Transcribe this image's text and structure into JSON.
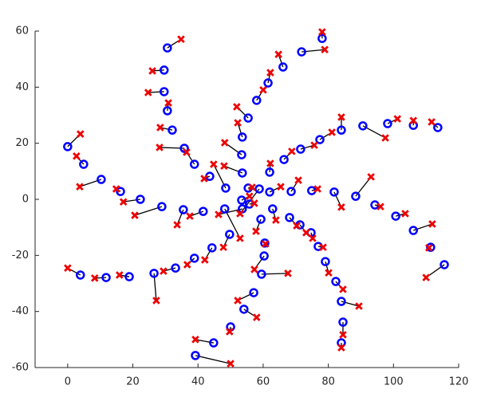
{
  "chart_data": {
    "type": "scatter",
    "xlim": [
      -10,
      120
    ],
    "xticks": [
      0,
      20,
      40,
      60,
      80,
      100,
      120
    ],
    "ylim": [
      -60,
      60
    ],
    "yticks": [
      -60,
      -40,
      -20,
      0,
      20,
      40,
      60
    ],
    "link_color": "#000000",
    "series": [
      {
        "marker": "circle",
        "color": "#0000ff",
        "x": [
          0,
          4.9,
          10.3,
          16.2,
          22.3,
          28.9,
          35.5,
          41.6,
          3.9,
          11.8,
          18.9,
          26.5,
          33.1,
          38.9,
          44.3,
          49.7,
          44.8,
          39.2,
          50.0,
          54.1,
          57.1,
          60.3,
          59.5,
          60.5,
          59.3,
          62.9,
          68.1,
          71.3,
          74.7,
          76.9,
          79.1,
          82.3,
          84.0,
          84.5,
          84.0,
          90.6,
          98.2,
          106.1,
          113.6,
          88.4,
          94.3,
          100.7,
          106.1,
          111.4,
          115.6,
          81.8,
          74.9,
          62.0,
          68.6,
          66.4,
          71.5,
          77.4,
          84.0,
          62.0,
          78.1,
          71.8,
          66.1,
          61.5,
          58.0,
          30.6,
          29.6,
          29.6,
          30.6,
          32.1,
          35.8,
          38.9,
          43.6,
          48.5,
          55.4,
          53.6,
          53.4,
          53.6,
          55.4,
          48.2,
          53.6,
          58.8,
          55.8,
          53.4
        ],
        "values": [
          18.8,
          12.5,
          7.1,
          2.8,
          0,
          -2.6,
          -3.7,
          -4.3,
          -27.0,
          -27.9,
          -27.6,
          -26.4,
          -24.5,
          -21.0,
          -17.3,
          -12.5,
          -51.2,
          -55.7,
          -45.5,
          -39.2,
          -33.3,
          -20.2,
          -26.7,
          -15.6,
          -7.1,
          -3.4,
          -6.5,
          -9.1,
          -11.9,
          -16.8,
          -22.2,
          -29.3,
          -36.4,
          -43.8,
          -51.2,
          26.2,
          27.0,
          26.4,
          25.6,
          1.1,
          -2.0,
          -6.0,
          -11.1,
          -17.1,
          -23.3,
          2.6,
          3.1,
          2.6,
          2.8,
          14.2,
          17.9,
          21.3,
          24.7,
          9.7,
          57.4,
          52.6,
          47.2,
          41.5,
          35.3,
          54.0,
          46.1,
          38.4,
          31.6,
          24.7,
          18.2,
          12.5,
          8.2,
          4.0,
          29.0,
          22.2,
          15.9,
          9.4,
          4.0,
          -3.4,
          -3.4,
          3.7,
          -1.7,
          -0.3
        ]
      },
      {
        "marker": "cross",
        "color": "#ee0000",
        "x": [
          3.9,
          2.7,
          3.7,
          14.9,
          17.1,
          20.6,
          33.6,
          37.5,
          0,
          8.3,
          15.9,
          27.2,
          29.4,
          36.7,
          42.1,
          47.8,
          39.2,
          50.0,
          49.7,
          58.0,
          52.2,
          57.3,
          67.6,
          60.7,
          57.8,
          63.9,
          70.3,
          73.2,
          75.2,
          78.4,
          80.1,
          84.5,
          89.4,
          84.5,
          84.0,
          97.5,
          101.2,
          106.1,
          111.7,
          93.1,
          96.0,
          103.6,
          111.9,
          110.9,
          110.0,
          84.0,
          76.7,
          65.4,
          70.8,
          68.8,
          75.7,
          81.1,
          84.0,
          62.2,
          78.1,
          78.9,
          64.7,
          62.2,
          60.0,
          34.8,
          26.0,
          24.7,
          30.9,
          28.4,
          28.2,
          36.5,
          41.9,
          44.8,
          51.9,
          52.2,
          48.2,
          48.0,
          56.6,
          52.9,
          46.3,
          52.9,
          57.3,
          55.8
        ],
        "values": [
          23.3,
          15.4,
          4.5,
          3.7,
          -0.9,
          -5.7,
          -9.1,
          -6.0,
          -24.5,
          -28.1,
          -27.0,
          -36.1,
          -25.6,
          -23.3,
          -21.6,
          -17.1,
          -50.0,
          -58.6,
          -47.2,
          -42.1,
          -36.1,
          -25.0,
          -26.4,
          -15.9,
          -11.4,
          -7.4,
          -9.4,
          -11.9,
          -13.9,
          -17.1,
          -26.2,
          -32.1,
          -38.1,
          -48.3,
          -52.9,
          21.9,
          28.7,
          28.1,
          27.6,
          8.0,
          -2.6,
          -5.1,
          -8.8,
          -17.3,
          -27.9,
          -2.8,
          3.7,
          4.5,
          6.8,
          17.1,
          19.3,
          23.9,
          29.3,
          12.8,
          59.7,
          53.4,
          51.7,
          45.2,
          39.0,
          57.1,
          45.8,
          38.1,
          34.4,
          25.6,
          18.5,
          16.8,
          7.4,
          12.5,
          33.0,
          27.3,
          20.2,
          11.9,
          4.3,
          -13.9,
          -5.4,
          -5.1,
          -1.4,
          1.1
        ]
      }
    ]
  }
}
